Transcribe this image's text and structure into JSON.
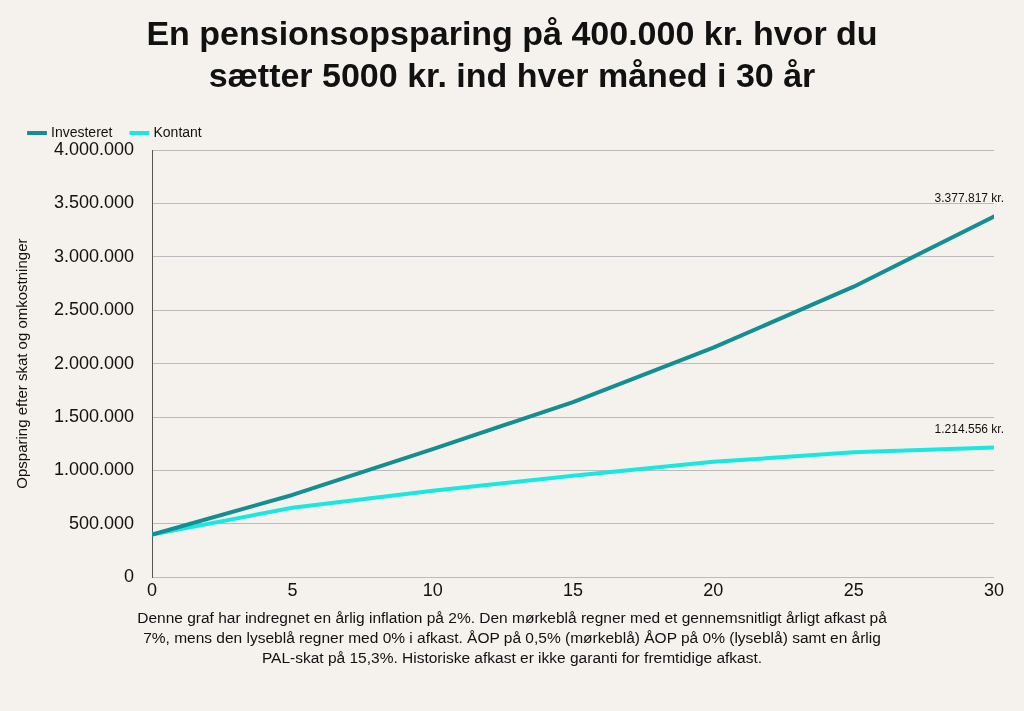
{
  "chart_data": {
    "type": "line",
    "title": "En pensionsopsparing på 400.000 kr. hvor du sætter 5000 kr. ind hver måned i 30 år",
    "ylabel": "Opsparing efter skat og omkostninger",
    "x": [
      0,
      5,
      10,
      15,
      20,
      25,
      30
    ],
    "xlim": [
      0,
      30
    ],
    "xticks": [
      0,
      5,
      10,
      15,
      20,
      25,
      30
    ],
    "ylim": [
      0,
      4000000
    ],
    "yticks": [
      0,
      {
        "value": 500000,
        "label": "500.000"
      },
      {
        "value": 1000000,
        "label": "1.000.000"
      },
      {
        "value": 1500000,
        "label": "1.500.000"
      },
      {
        "value": 2000000,
        "label": "2.000.000"
      },
      {
        "value": 2500000,
        "label": "2.500.000"
      },
      {
        "value": 3000000,
        "label": "3.000.000"
      },
      {
        "value": 3500000,
        "label": "3.500.000"
      },
      {
        "value": 4000000,
        "label": "4.000.000"
      }
    ],
    "series": [
      {
        "name": "Investeret",
        "color": "#138e93",
        "values": [
          400000,
          770000,
          1200000,
          1640000,
          2150000,
          2720000,
          3377817
        ],
        "value_labels": [
          null,
          null,
          null,
          null,
          null,
          null,
          "3.377.817 kr."
        ]
      },
      {
        "name": "Kontant",
        "color": "#19e8e0",
        "values": [
          400000,
          650000,
          810000,
          950000,
          1080000,
          1170000,
          1214556
        ],
        "value_labels": [
          null,
          null,
          null,
          null,
          null,
          null,
          "1.214.556 kr."
        ]
      }
    ],
    "grid": "y",
    "legend": "top left",
    "marker": "none",
    "line_style": "solid",
    "annotations": [
      "Denne graf har indregnet en årlig inflation på 2%. Den mørkeblå regner med et gennemsnitligt årligt afkast på 7%, mens den lyseblå regner med 0% i afkast. ÅOP på 0,5% (mørkeblå) ÅOP på 0% (lyseblå) samt en årlig PAL-skat på 15,3%. Historiske afkast er ikke garanti for fremtidige afkast."
    ]
  }
}
